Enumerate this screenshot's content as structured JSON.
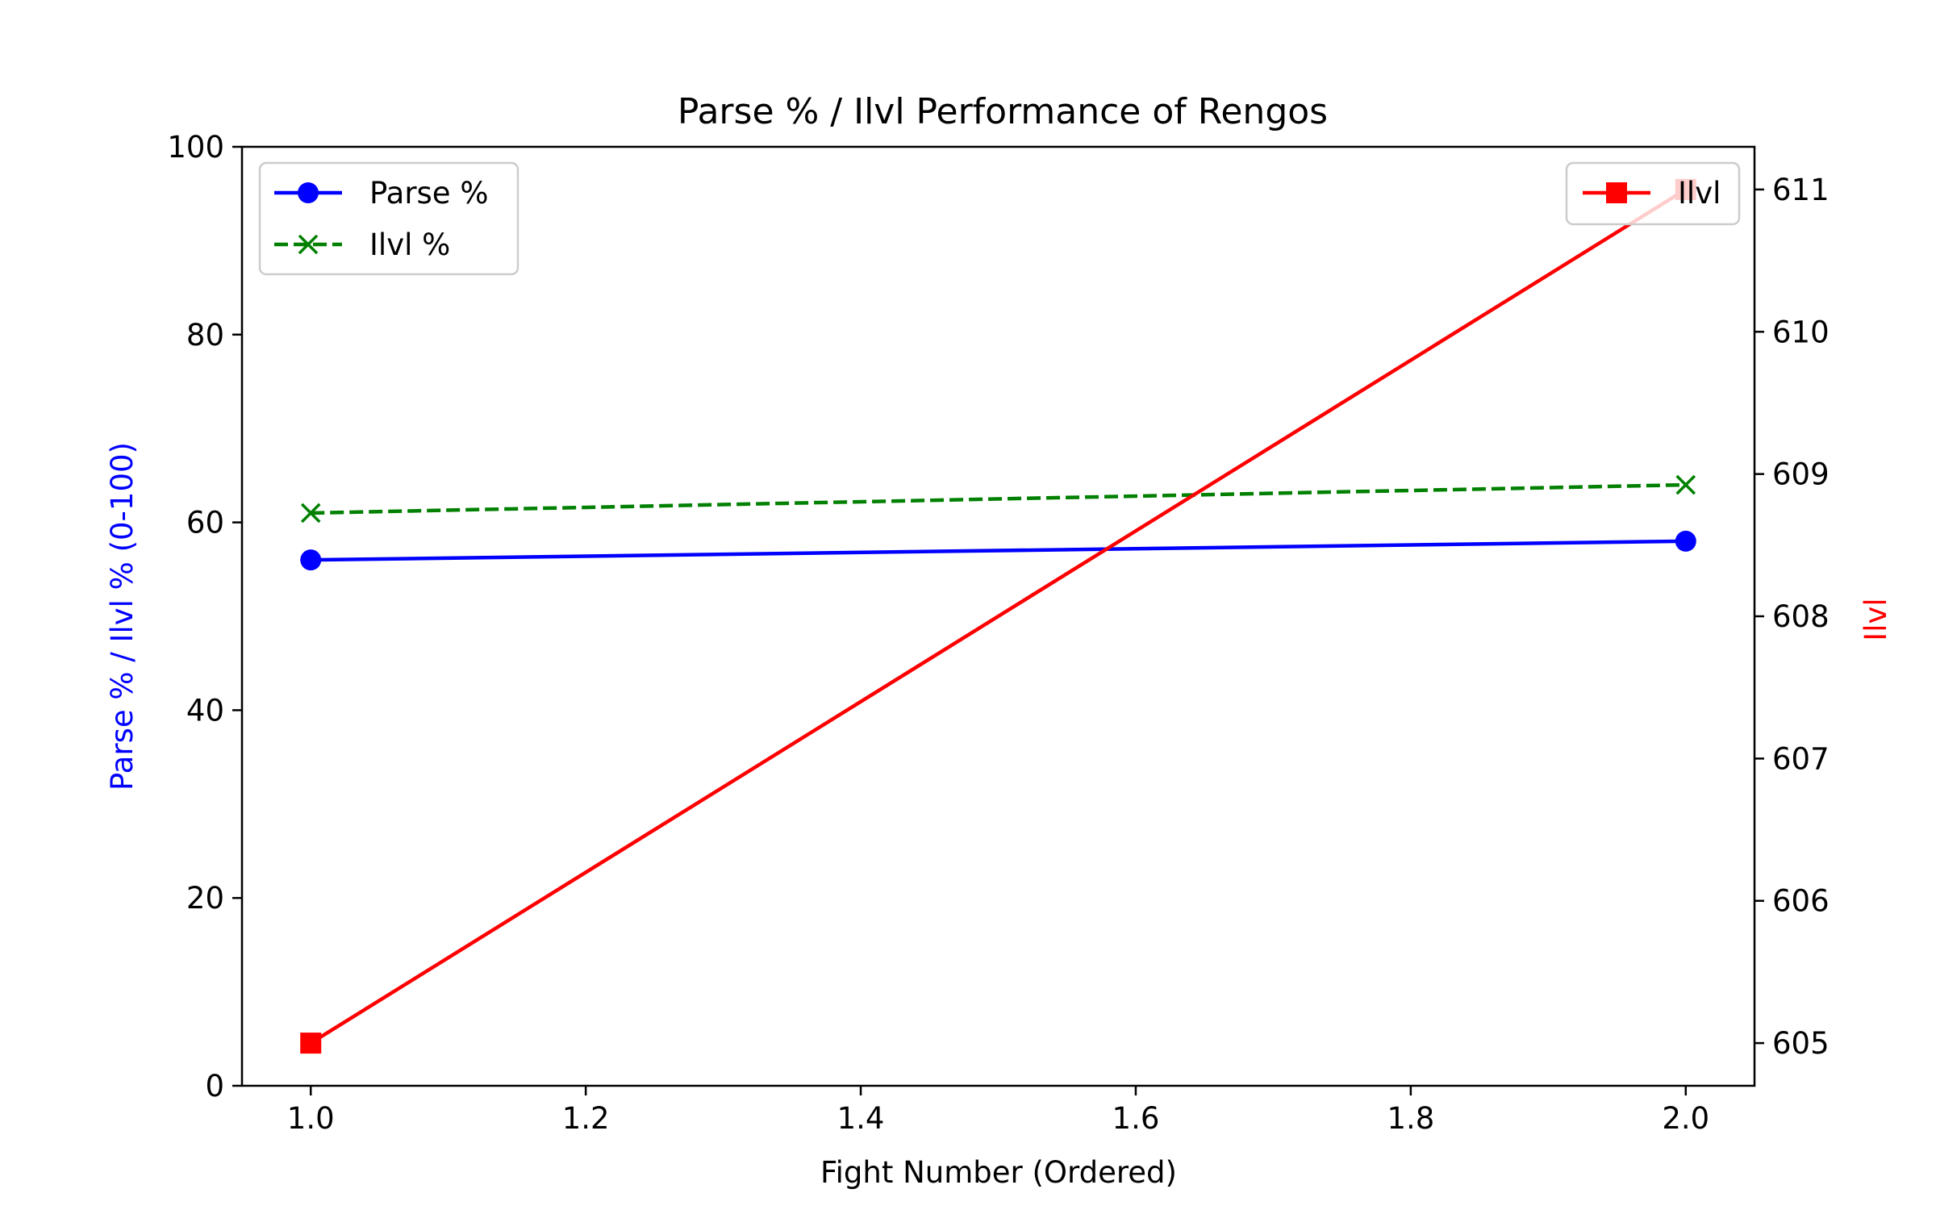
{
  "chart_data": {
    "type": "line",
    "title": "Parse % / Ilvl Performance of Rengos",
    "xlabel": "Fight Number (Ordered)",
    "ylabel_left": "Parse % / Ilvl % (0-100)",
    "ylabel_right": "Ilvl",
    "xlim": [
      0.95,
      2.05
    ],
    "ylim_left": [
      0,
      100
    ],
    "ylim_right": [
      604.7,
      611.3
    ],
    "x_ticks": [
      "1.0",
      "1.2",
      "1.4",
      "1.6",
      "1.8",
      "2.0"
    ],
    "y_left_ticks": [
      "0",
      "20",
      "40",
      "60",
      "80",
      "100"
    ],
    "y_right_ticks": [
      "605",
      "606",
      "607",
      "608",
      "609",
      "610",
      "611"
    ],
    "grid": false,
    "series": [
      {
        "name": "Parse %",
        "axis": "left",
        "color": "#0000ff",
        "marker": "circle",
        "dash": "solid",
        "x": [
          1.0,
          2.0
        ],
        "y": [
          56,
          58
        ]
      },
      {
        "name": "Ilvl %",
        "axis": "left",
        "color": "#008000",
        "marker": "x",
        "dash": "dashed",
        "x": [
          1.0,
          2.0
        ],
        "y": [
          61,
          64
        ]
      },
      {
        "name": "Ilvl",
        "axis": "right",
        "color": "#ff0000",
        "marker": "square",
        "dash": "solid",
        "x": [
          1.0,
          2.0
        ],
        "y": [
          605,
          611
        ]
      }
    ],
    "legends": {
      "left": "upper-left",
      "right": "upper-right"
    }
  }
}
